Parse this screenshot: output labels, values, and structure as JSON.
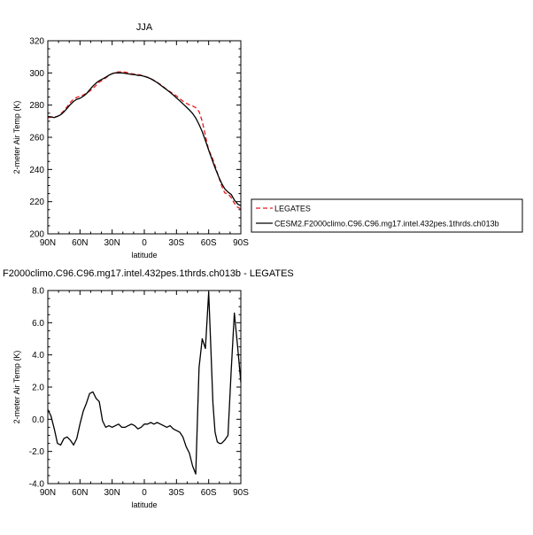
{
  "chart_data": [
    {
      "type": "line",
      "title": "JJA",
      "xlabel": "latitude",
      "ylabel": "2-meter Air Temp (K)",
      "x_ticks": [
        "90N",
        "60N",
        "30N",
        "0",
        "30S",
        "60S",
        "90S"
      ],
      "y_ticks": [
        "200",
        "220",
        "240",
        "260",
        "280",
        "300",
        "320"
      ],
      "xlim": [
        90,
        -90
      ],
      "ylim": [
        200,
        320
      ],
      "legend_position": "right",
      "series": [
        {
          "name": "LEGATES",
          "color": "#e41a1c",
          "dashed": true,
          "x": [
            90,
            87,
            84,
            81,
            78,
            75,
            72,
            69,
            66,
            63,
            60,
            57,
            54,
            51,
            48,
            45,
            42,
            39,
            36,
            33,
            30,
            27,
            24,
            21,
            18,
            15,
            12,
            9,
            6,
            3,
            0,
            -3,
            -6,
            -9,
            -12,
            -15,
            -18,
            -21,
            -24,
            -27,
            -30,
            -33,
            -36,
            -39,
            -42,
            -45,
            -48,
            -51,
            -54,
            -57,
            -60,
            -63,
            -66,
            -69,
            -72,
            -75,
            -78,
            -81,
            -84,
            -87,
            -90
          ],
          "y": [
            272.3,
            272.5,
            272.6,
            273.0,
            274.5,
            276.5,
            279.0,
            281.7,
            283.8,
            284.8,
            285.5,
            286.3,
            287.3,
            288.6,
            290.3,
            292.3,
            294.3,
            295.5,
            296.8,
            298.5,
            299.6,
            300.3,
            300.6,
            300.7,
            300.5,
            300.1,
            299.6,
            299.2,
            299.0,
            298.6,
            298.0,
            297.3,
            296.5,
            295.4,
            294.2,
            292.8,
            291.3,
            289.7,
            288.3,
            287.0,
            285.7,
            284.0,
            282.4,
            281.2,
            280.2,
            279.5,
            278.4,
            276.0,
            270.0,
            261.0,
            252.0,
            248.0,
            242.5,
            236.0,
            230.0,
            225.5,
            224.8,
            222.5,
            219.0,
            216.5,
            215.5
          ]
        },
        {
          "name": "CESM2.F2000climo.C96.C96.mg17.intel.432pes.1thrds.ch013b",
          "color": "#000000",
          "dashed": false,
          "x": [
            90,
            87,
            84,
            81,
            78,
            75,
            72,
            69,
            66,
            63,
            60,
            57,
            54,
            51,
            48,
            45,
            42,
            39,
            36,
            33,
            30,
            27,
            24,
            21,
            18,
            15,
            12,
            9,
            6,
            3,
            0,
            -3,
            -6,
            -9,
            -12,
            -15,
            -18,
            -21,
            -24,
            -27,
            -30,
            -33,
            -36,
            -39,
            -42,
            -45,
            -48,
            -51,
            -54,
            -57,
            -60,
            -63,
            -66,
            -69,
            -72,
            -75,
            -78,
            -81,
            -84,
            -87,
            -90
          ],
          "y": [
            272.9,
            272.7,
            272.3,
            273.0,
            274.0,
            275.8,
            278.0,
            280.3,
            282.3,
            283.6,
            284.2,
            285.5,
            287.1,
            289.4,
            291.8,
            293.7,
            295.2,
            296.2,
            297.3,
            298.6,
            299.5,
            300.0,
            300.1,
            300.0,
            299.8,
            299.4,
            299.1,
            298.9,
            298.5,
            298.4,
            297.8,
            297.2,
            296.4,
            295.2,
            294.0,
            292.5,
            291.0,
            289.5,
            287.9,
            286.3,
            284.5,
            282.7,
            280.8,
            279.0,
            277.0,
            274.8,
            272.0,
            268.0,
            263.5,
            258.0,
            252.0,
            246.5,
            241.0,
            236.0,
            231.5,
            228.0,
            226.0,
            224.5,
            221.0,
            218.5,
            217.5
          ]
        }
      ]
    },
    {
      "type": "line",
      "title": "F2000climo.C96.C96.mg17.intel.432pes.1thrds.ch013b - LEGATES",
      "xlabel": "latitude",
      "ylabel": "2-meter Air Temp (K)",
      "x_ticks": [
        "90N",
        "60N",
        "30N",
        "0",
        "30S",
        "60S",
        "90S"
      ],
      "y_ticks": [
        "-4.0",
        "-2.0",
        "0.0",
        "2.0",
        "4.0",
        "6.0",
        "8.0"
      ],
      "xlim": [
        90,
        -90
      ],
      "ylim": [
        -4,
        8
      ],
      "series": [
        {
          "color": "#000000",
          "x": [
            90,
            87,
            84,
            81,
            78,
            75,
            72,
            69,
            66,
            63,
            60,
            57,
            54,
            51,
            48,
            45,
            42,
            39,
            36,
            33,
            30,
            27,
            24,
            21,
            18,
            15,
            12,
            9,
            6,
            3,
            0,
            -3,
            -6,
            -9,
            -12,
            -15,
            -18,
            -21,
            -24,
            -27,
            -30,
            -33,
            -36,
            -39,
            -42,
            -45,
            -48,
            -51,
            -54,
            -57,
            -60,
            -62,
            -64,
            -66,
            -68,
            -70,
            -72,
            -75,
            -78,
            -81,
            -84,
            -87,
            -90
          ],
          "y": [
            0.6,
            0.2,
            -0.6,
            -1.5,
            -1.6,
            -1.2,
            -1.1,
            -1.3,
            -1.6,
            -1.2,
            -0.3,
            0.5,
            1.0,
            1.6,
            1.7,
            1.3,
            1.1,
            -0.1,
            -0.5,
            -0.4,
            -0.5,
            -0.4,
            -0.3,
            -0.5,
            -0.5,
            -0.4,
            -0.3,
            -0.4,
            -0.6,
            -0.5,
            -0.3,
            -0.3,
            -0.2,
            -0.3,
            -0.2,
            -0.3,
            -0.4,
            -0.5,
            -0.4,
            -0.6,
            -0.7,
            -0.8,
            -1.1,
            -1.7,
            -2.1,
            -2.9,
            -3.4,
            3.2,
            5.0,
            4.4,
            7.9,
            4.5,
            1.0,
            -0.8,
            -1.4,
            -1.5,
            -1.5,
            -1.3,
            -1.0,
            3.0,
            6.6,
            4.5,
            2.3
          ]
        }
      ]
    }
  ]
}
